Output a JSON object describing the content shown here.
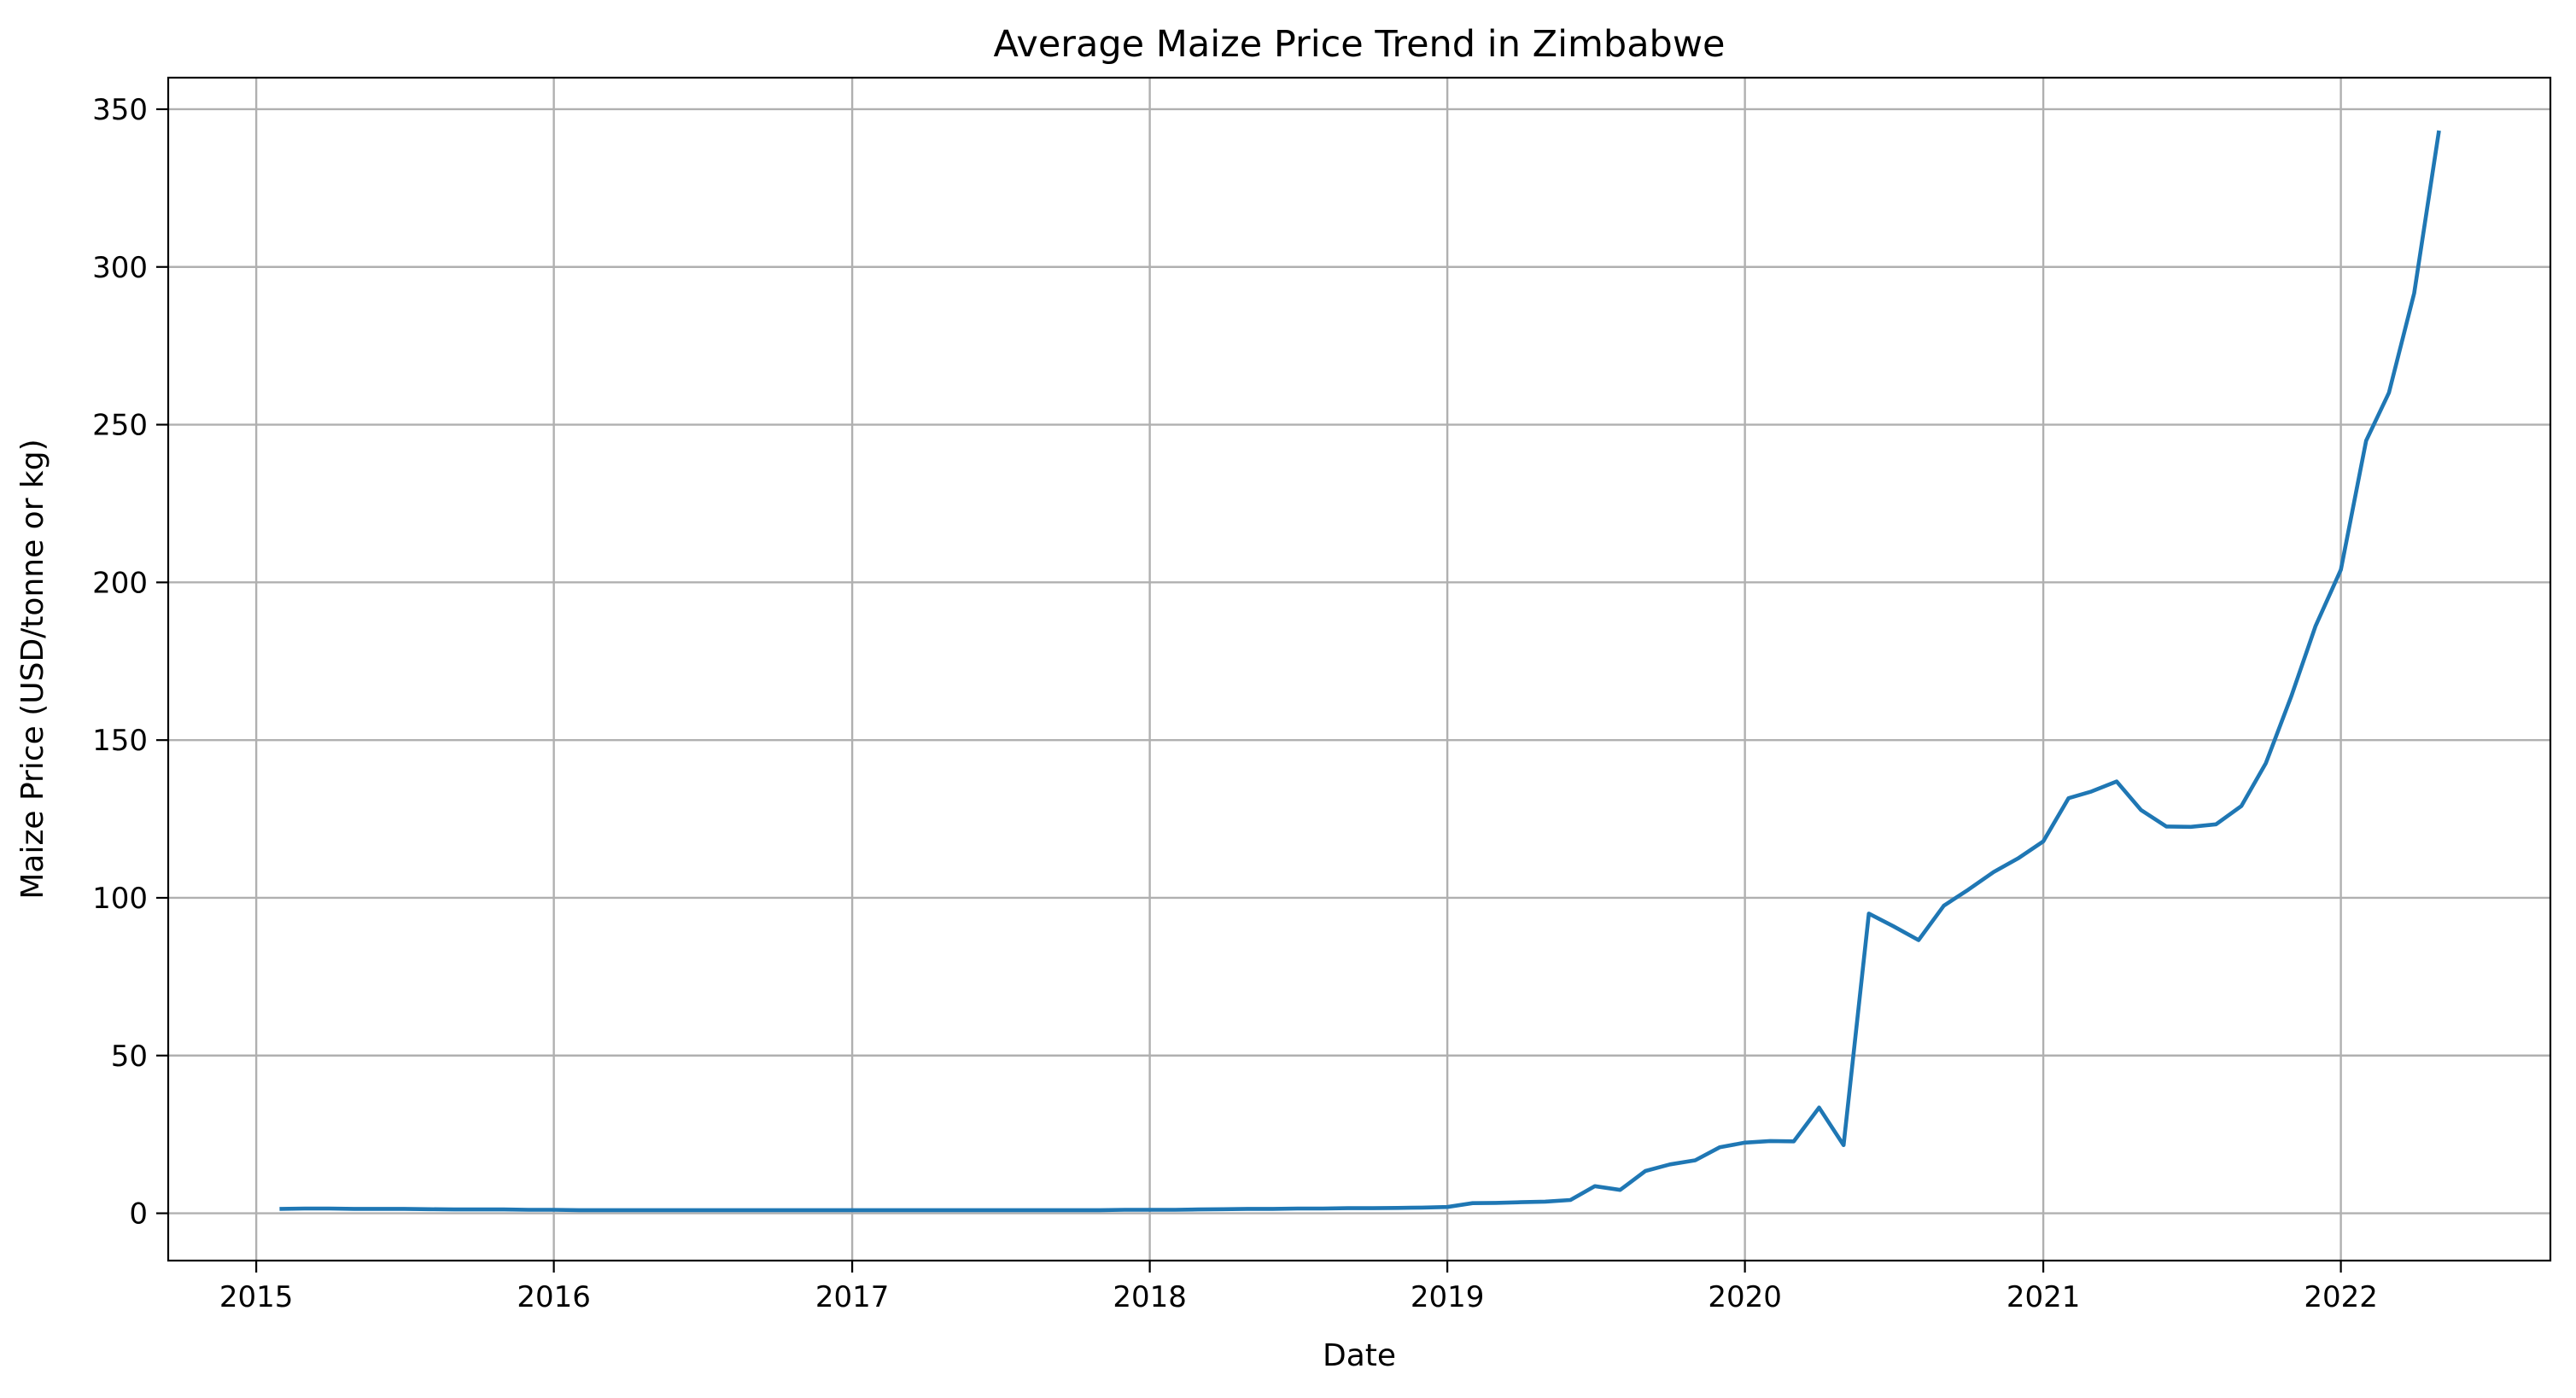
{
  "chart_data": {
    "type": "line",
    "title": "Average Maize Price Trend in Zimbabwe",
    "xlabel": "Date",
    "ylabel": "Maize Price (USD/tonne or kg)",
    "xlim": [
      "2014-09-15",
      "2022-09-15"
    ],
    "ylim": [
      -15,
      360
    ],
    "x_ticks": [
      "2015",
      "2016",
      "2017",
      "2018",
      "2019",
      "2020",
      "2021",
      "2022"
    ],
    "y_ticks": [
      0,
      50,
      100,
      150,
      200,
      250,
      300,
      350
    ],
    "grid": true,
    "legend": false,
    "line_color": "#1f77b4",
    "series": [
      {
        "x": [
          "2015-02",
          "2015-03",
          "2015-04",
          "2015-05",
          "2015-06",
          "2015-07",
          "2015-08",
          "2015-09",
          "2015-10",
          "2015-11",
          "2015-12",
          "2016-01",
          "2016-02",
          "2016-03",
          "2016-04",
          "2016-05",
          "2016-06",
          "2016-07",
          "2016-08",
          "2016-09",
          "2016-10",
          "2016-11",
          "2016-12",
          "2017-01",
          "2017-02",
          "2017-03",
          "2017-04",
          "2017-05",
          "2017-06",
          "2017-07",
          "2017-08",
          "2017-09",
          "2017-10",
          "2017-11",
          "2017-12",
          "2018-01",
          "2018-02",
          "2018-03",
          "2018-04",
          "2018-05",
          "2018-06",
          "2018-07",
          "2018-08",
          "2018-09",
          "2018-10",
          "2018-11",
          "2018-12",
          "2019-01",
          "2019-02",
          "2019-03",
          "2019-04",
          "2019-05",
          "2019-06",
          "2019-07",
          "2019-08",
          "2019-09",
          "2019-10",
          "2019-11",
          "2019-12",
          "2020-01",
          "2020-02",
          "2020-03",
          "2020-04",
          "2020-05",
          "2020-06",
          "2020-07",
          "2020-08",
          "2020-09",
          "2020-10",
          "2020-11",
          "2020-12",
          "2021-01",
          "2021-02",
          "2021-03",
          "2021-04",
          "2021-05",
          "2021-06",
          "2021-07",
          "2021-08",
          "2021-09",
          "2021-10",
          "2021-11",
          "2021-12",
          "2022-01",
          "2022-02",
          "2022-03",
          "2022-04",
          "2022-05"
        ],
        "values": [
          1.4,
          1.5,
          1.5,
          1.4,
          1.4,
          1.4,
          1.3,
          1.2,
          1.2,
          1.2,
          1.1,
          1.1,
          1.0,
          1.0,
          1.0,
          1.0,
          1.0,
          1.0,
          1.0,
          1.0,
          1.0,
          1.0,
          1.0,
          1.0,
          1.0,
          1.0,
          1.0,
          1.0,
          1.0,
          1.0,
          1.0,
          1.0,
          1.0,
          1.0,
          1.1,
          1.1,
          1.1,
          1.2,
          1.3,
          1.4,
          1.4,
          1.5,
          1.5,
          1.6,
          1.6,
          1.7,
          1.8,
          2.0,
          3.2,
          3.3,
          3.5,
          3.7,
          4.2,
          8.6,
          7.4,
          13.4,
          15.5,
          16.8,
          20.9,
          22.4,
          22.9,
          22.8,
          33.5,
          21.6,
          95.0,
          91.0,
          86.6,
          97.5,
          102.6,
          108.2,
          112.5,
          117.9,
          131.6,
          133.7,
          136.9,
          127.8,
          122.6,
          122.5,
          123.3,
          129.1,
          142.7,
          163.8,
          186.2,
          204.0,
          244.9,
          260.1,
          291.7,
          342.6
        ]
      }
    ]
  }
}
